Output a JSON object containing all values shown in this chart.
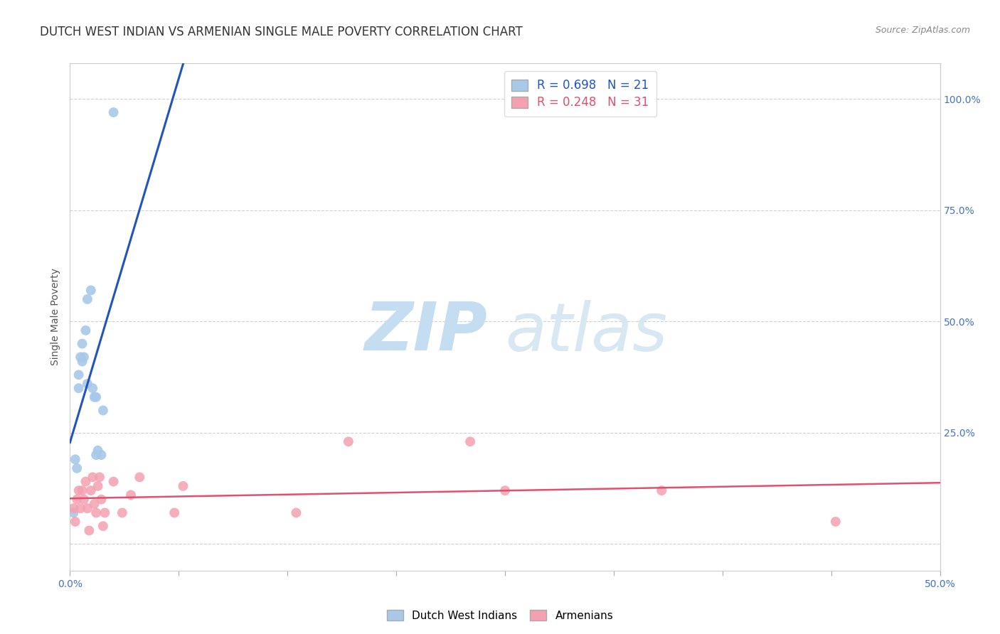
{
  "title": "DUTCH WEST INDIAN VS ARMENIAN SINGLE MALE POVERTY CORRELATION CHART",
  "source": "Source: ZipAtlas.com",
  "ylabel": "Single Male Poverty",
  "right_yticks": [
    "100.0%",
    "75.0%",
    "50.0%",
    "25.0%"
  ],
  "right_ytick_vals": [
    1.0,
    0.75,
    0.5,
    0.25
  ],
  "xlim": [
    0.0,
    0.5
  ],
  "ylim": [
    -0.06,
    1.08
  ],
  "blue_R": "R = 0.698",
  "blue_N": "N = 21",
  "pink_R": "R = 0.248",
  "pink_N": "N = 31",
  "blue_color": "#a8c8e8",
  "pink_color": "#f4a0b0",
  "blue_line_color": "#2255bb",
  "pink_line_color": "#e05070",
  "legend_label_blue": "Dutch West Indians",
  "legend_label_pink": "Armenians",
  "blue_x": [
    0.002,
    0.003,
    0.004,
    0.005,
    0.005,
    0.006,
    0.007,
    0.007,
    0.008,
    0.009,
    0.01,
    0.01,
    0.012,
    0.013,
    0.014,
    0.015,
    0.015,
    0.016,
    0.018,
    0.019,
    0.025
  ],
  "blue_y": [
    0.07,
    0.19,
    0.17,
    0.35,
    0.38,
    0.42,
    0.45,
    0.41,
    0.42,
    0.48,
    0.36,
    0.55,
    0.57,
    0.35,
    0.33,
    0.33,
    0.2,
    0.21,
    0.2,
    0.3,
    0.97
  ],
  "pink_x": [
    0.002,
    0.003,
    0.004,
    0.005,
    0.006,
    0.007,
    0.008,
    0.009,
    0.01,
    0.011,
    0.012,
    0.013,
    0.014,
    0.015,
    0.016,
    0.017,
    0.018,
    0.019,
    0.02,
    0.025,
    0.03,
    0.035,
    0.04,
    0.06,
    0.065,
    0.13,
    0.16,
    0.23,
    0.25,
    0.34,
    0.44
  ],
  "pink_y": [
    0.08,
    0.05,
    0.1,
    0.12,
    0.08,
    0.12,
    0.1,
    0.14,
    0.08,
    0.03,
    0.12,
    0.15,
    0.09,
    0.07,
    0.13,
    0.15,
    0.1,
    0.04,
    0.07,
    0.14,
    0.07,
    0.11,
    0.15,
    0.07,
    0.13,
    0.07,
    0.23,
    0.23,
    0.12,
    0.12,
    0.05
  ],
  "grid_color": "#cccccc",
  "background_color": "#ffffff",
  "title_fontsize": 12,
  "axis_label_fontsize": 10,
  "tick_fontsize": 10,
  "legend_fontsize": 11,
  "scatter_size": 100
}
